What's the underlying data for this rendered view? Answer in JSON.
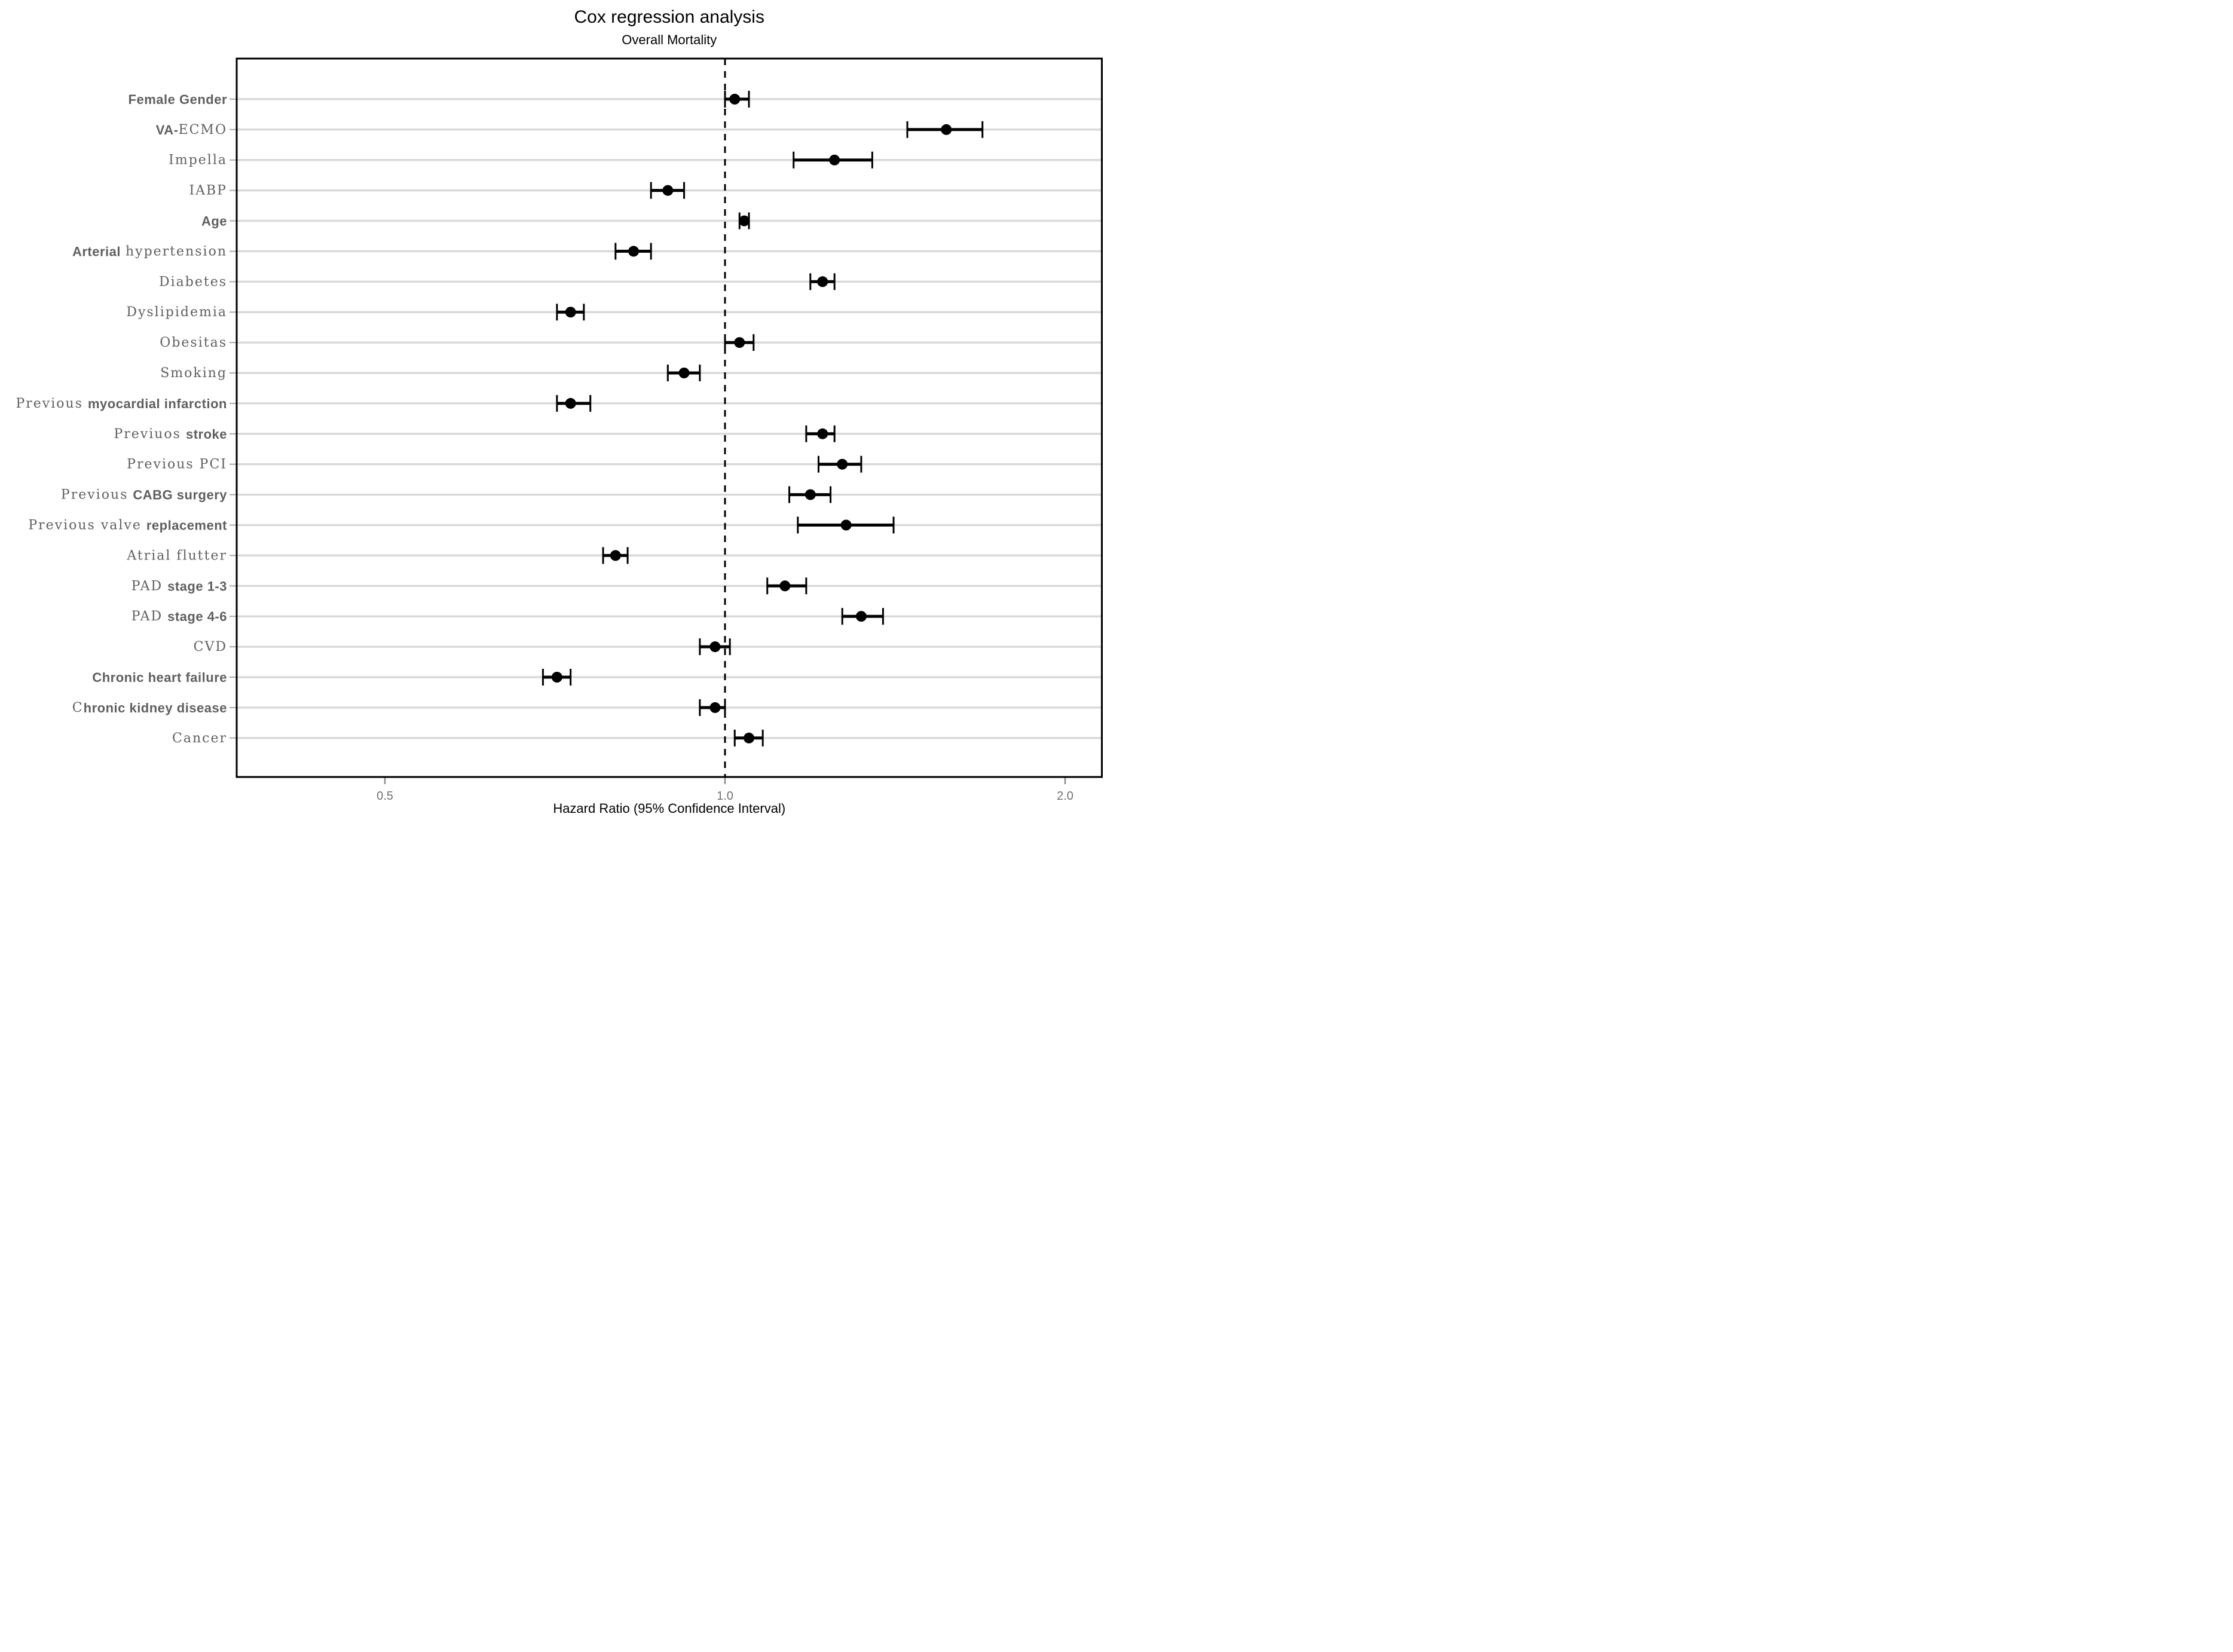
{
  "chart_data": {
    "type": "forest",
    "title": "Cox regression analysis",
    "subtitle": "Overall Mortality",
    "xlabel": "Hazard Ratio (95% Confidence Interval)",
    "x_scale": "log2",
    "x_range": [
      0.37,
      2.16
    ],
    "x_ticks": [
      {
        "label": "0.5",
        "value": 0.5
      },
      {
        "label": "1.0",
        "value": 1.0
      },
      {
        "label": "2.0",
        "value": 2.0
      }
    ],
    "reference_line": 1.0,
    "grid": "horizontal",
    "legend": "none",
    "rows": [
      {
        "slug": "female-gender",
        "label": "Female Gender",
        "hr": 1.02,
        "ci_low": 1.0,
        "ci_high": 1.05,
        "label_parts": [
          {
            "text": "Female Gender",
            "bold": true
          }
        ]
      },
      {
        "slug": "va-ecmo",
        "label": "VA-ECMO",
        "hr": 1.57,
        "ci_low": 1.45,
        "ci_high": 1.69,
        "label_parts": [
          {
            "text": "VA-",
            "bold": true
          },
          {
            "text": "ECMO",
            "bold": false
          }
        ]
      },
      {
        "slug": "impella",
        "label": "Impella",
        "hr": 1.25,
        "ci_low": 1.15,
        "ci_high": 1.35,
        "label_parts": [
          {
            "text": "Impella",
            "bold": false
          }
        ]
      },
      {
        "slug": "iabp",
        "label": "IABP",
        "hr": 0.89,
        "ci_low": 0.86,
        "ci_high": 0.92,
        "label_parts": [
          {
            "text": "IABP",
            "bold": false
          }
        ]
      },
      {
        "slug": "age",
        "label": "Age",
        "hr": 1.04,
        "ci_low": 1.03,
        "ci_high": 1.05,
        "label_parts": [
          {
            "text": "Age",
            "bold": true
          }
        ]
      },
      {
        "slug": "arterial-hypertension",
        "label": "Arterial hypertension",
        "hr": 0.83,
        "ci_low": 0.8,
        "ci_high": 0.86,
        "label_parts": [
          {
            "text": "Arterial ",
            "bold": true
          },
          {
            "text": "hypertension",
            "bold": false
          }
        ]
      },
      {
        "slug": "diabetes",
        "label": "Diabetes",
        "hr": 1.22,
        "ci_low": 1.19,
        "ci_high": 1.25,
        "label_parts": [
          {
            "text": "Diabetes",
            "bold": false
          }
        ]
      },
      {
        "slug": "dyslipidemia",
        "label": "Dyslipidemia",
        "hr": 0.73,
        "ci_low": 0.71,
        "ci_high": 0.75,
        "label_parts": [
          {
            "text": "Dyslipidemia",
            "bold": false
          }
        ]
      },
      {
        "slug": "obesitas",
        "label": "Obesitas",
        "hr": 1.03,
        "ci_low": 1.0,
        "ci_high": 1.06,
        "label_parts": [
          {
            "text": "Obesitas",
            "bold": false
          }
        ]
      },
      {
        "slug": "smoking",
        "label": "Smoking",
        "hr": 0.92,
        "ci_low": 0.89,
        "ci_high": 0.95,
        "label_parts": [
          {
            "text": "Smoking",
            "bold": false
          }
        ]
      },
      {
        "slug": "previous-myocardial-infarction",
        "label": "Previous myocardial infarction",
        "hr": 0.73,
        "ci_low": 0.71,
        "ci_high": 0.76,
        "label_parts": [
          {
            "text": "Previous ",
            "bold": false
          },
          {
            "text": "myocardial infarction",
            "bold": true
          }
        ]
      },
      {
        "slug": "previuos-stroke",
        "label": "Previuos stroke",
        "hr": 1.22,
        "ci_low": 1.18,
        "ci_high": 1.25,
        "label_parts": [
          {
            "text": "Previuos ",
            "bold": false
          },
          {
            "text": "stroke",
            "bold": true
          }
        ]
      },
      {
        "slug": "previous-pci",
        "label": "Previous PCI",
        "hr": 1.27,
        "ci_low": 1.21,
        "ci_high": 1.32,
        "label_parts": [
          {
            "text": "Previous PCI",
            "bold": false
          }
        ]
      },
      {
        "slug": "previous-cabg-surgery",
        "label": "Previous CABG surgery",
        "hr": 1.19,
        "ci_low": 1.14,
        "ci_high": 1.24,
        "label_parts": [
          {
            "text": "Previous ",
            "bold": false
          },
          {
            "text": "CABG surgery",
            "bold": true
          }
        ]
      },
      {
        "slug": "previous-valve-replacement",
        "label": "Previous valve replacement",
        "hr": 1.28,
        "ci_low": 1.16,
        "ci_high": 1.41,
        "label_parts": [
          {
            "text": "Previous valve ",
            "bold": false
          },
          {
            "text": "replacement",
            "bold": true
          }
        ]
      },
      {
        "slug": "atrial-flutter",
        "label": "Atrial flutter",
        "hr": 0.8,
        "ci_low": 0.78,
        "ci_high": 0.82,
        "label_parts": [
          {
            "text": "Atrial flutter",
            "bold": false
          }
        ]
      },
      {
        "slug": "pad-stage-1-3",
        "label": "PAD stage 1-3",
        "hr": 1.13,
        "ci_low": 1.09,
        "ci_high": 1.18,
        "label_parts": [
          {
            "text": "PAD ",
            "bold": false
          },
          {
            "text": "stage 1-3",
            "bold": true
          }
        ]
      },
      {
        "slug": "pad-stage-4-6",
        "label": "PAD stage 4-6",
        "hr": 1.32,
        "ci_low": 1.27,
        "ci_high": 1.38,
        "label_parts": [
          {
            "text": "PAD ",
            "bold": false
          },
          {
            "text": "stage 4-6",
            "bold": true
          }
        ]
      },
      {
        "slug": "cvd",
        "label": "CVD",
        "hr": 0.98,
        "ci_low": 0.95,
        "ci_high": 1.01,
        "label_parts": [
          {
            "text": "CVD",
            "bold": false
          }
        ]
      },
      {
        "slug": "chronic-heart-failure",
        "label": "Chronic heart failure",
        "hr": 0.71,
        "ci_low": 0.69,
        "ci_high": 0.73,
        "label_parts": [
          {
            "text": "Chronic heart failure",
            "bold": true
          }
        ]
      },
      {
        "slug": "chronic-kidney-disease",
        "label": "Chronic kidney disease",
        "hr": 0.98,
        "ci_low": 0.95,
        "ci_high": 1.0,
        "label_parts": [
          {
            "text": "C",
            "bold": false
          },
          {
            "text": "hronic kidney disease",
            "bold": true
          }
        ]
      },
      {
        "slug": "cancer",
        "label": "Cancer",
        "hr": 1.05,
        "ci_low": 1.02,
        "ci_high": 1.08,
        "label_parts": [
          {
            "text": "Cancer",
            "bold": false
          }
        ]
      }
    ],
    "style": {
      "point_color": "#000000",
      "ci_color": "#000000",
      "grid_color": "#d9d9d9",
      "reference_line_color": "#000000",
      "panel_border_color": "#000000",
      "row_label_color": "#5f5f5f",
      "tick_label_color": "#707070",
      "tick_mark_color": "#8c8c8c",
      "y_tick_mark_color": "#a8a8a8",
      "title_color": "#000000",
      "background": "#ffffff"
    }
  }
}
